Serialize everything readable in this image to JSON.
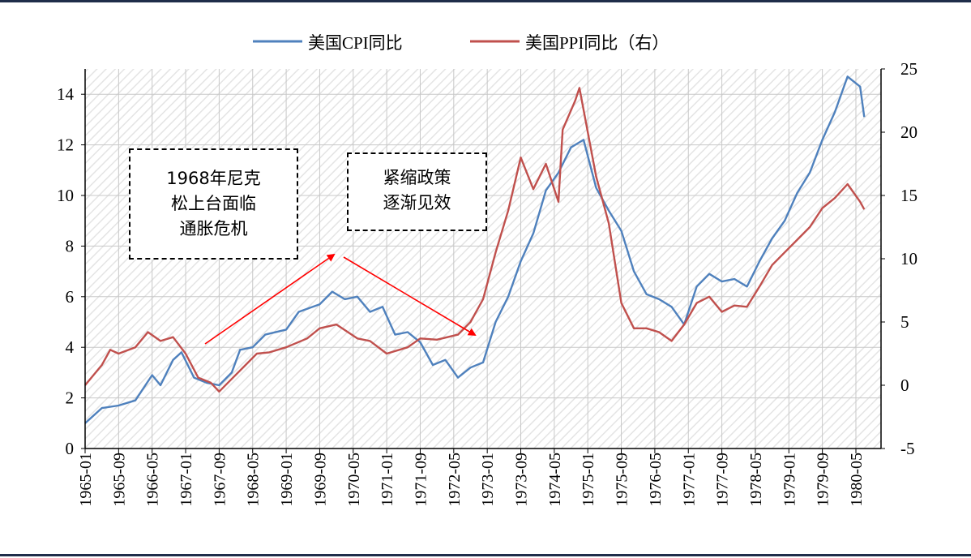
{
  "chart_data": {
    "type": "line",
    "legend": [
      "美国CPI同比",
      "美国PPI同比（右）"
    ],
    "legend_position": "top-center",
    "grid": true,
    "x_ticks": [
      "1965-01",
      "1965-09",
      "1966-05",
      "1967-01",
      "1967-09",
      "1968-05",
      "1969-01",
      "1969-09",
      "1970-05",
      "1971-01",
      "1971-09",
      "1972-05",
      "1973-01",
      "1973-09",
      "1974-05",
      "1975-01",
      "1975-09",
      "1976-05",
      "1977-01",
      "1977-09",
      "1978-05",
      "1979-01",
      "1979-09",
      "1980-05"
    ],
    "y_left_ticks": [
      "0",
      "2",
      "4",
      "6",
      "8",
      "10",
      "12",
      "14"
    ],
    "y_left_range": [
      0,
      15
    ],
    "y_right_ticks": [
      "-5",
      "0",
      "5",
      "10",
      "15",
      "20",
      "25"
    ],
    "y_right_range": [
      -5,
      25
    ],
    "series": [
      {
        "name": "美国CPI同比",
        "axis": "left",
        "color": "#4f81bd",
        "points": [
          [
            "1965-01",
            1.0
          ],
          [
            "1965-05",
            1.6
          ],
          [
            "1965-09",
            1.7
          ],
          [
            "1966-01",
            1.9
          ],
          [
            "1966-05",
            2.9
          ],
          [
            "1966-07",
            2.5
          ],
          [
            "1966-10",
            3.5
          ],
          [
            "1966-12",
            3.8
          ],
          [
            "1967-03",
            2.8
          ],
          [
            "1967-06",
            2.6
          ],
          [
            "1967-09",
            2.5
          ],
          [
            "1967-12",
            3.0
          ],
          [
            "1968-02",
            3.9
          ],
          [
            "1968-05",
            4.0
          ],
          [
            "1968-08",
            4.5
          ],
          [
            "1969-01",
            4.7
          ],
          [
            "1969-04",
            5.4
          ],
          [
            "1969-09",
            5.7
          ],
          [
            "1969-12",
            6.2
          ],
          [
            "1970-03",
            5.9
          ],
          [
            "1970-06",
            6.0
          ],
          [
            "1970-09",
            5.4
          ],
          [
            "1970-12",
            5.6
          ],
          [
            "1971-03",
            4.5
          ],
          [
            "1971-06",
            4.6
          ],
          [
            "1971-09",
            4.2
          ],
          [
            "1971-12",
            3.3
          ],
          [
            "1972-03",
            3.5
          ],
          [
            "1972-06",
            2.8
          ],
          [
            "1972-09",
            3.2
          ],
          [
            "1972-12",
            3.4
          ],
          [
            "1973-03",
            5.0
          ],
          [
            "1973-06",
            6.0
          ],
          [
            "1973-09",
            7.4
          ],
          [
            "1973-12",
            8.5
          ],
          [
            "1974-03",
            10.2
          ],
          [
            "1974-06",
            10.9
          ],
          [
            "1974-09",
            11.9
          ],
          [
            "1974-12",
            12.2
          ],
          [
            "1975-03",
            10.3
          ],
          [
            "1975-06",
            9.4
          ],
          [
            "1975-09",
            8.6
          ],
          [
            "1975-12",
            7.0
          ],
          [
            "1976-03",
            6.1
          ],
          [
            "1976-06",
            5.9
          ],
          [
            "1976-09",
            5.6
          ],
          [
            "1976-12",
            4.9
          ],
          [
            "1977-03",
            6.4
          ],
          [
            "1977-06",
            6.9
          ],
          [
            "1977-09",
            6.6
          ],
          [
            "1977-12",
            6.7
          ],
          [
            "1978-03",
            6.4
          ],
          [
            "1978-06",
            7.4
          ],
          [
            "1978-09",
            8.3
          ],
          [
            "1978-12",
            9.0
          ],
          [
            "1979-03",
            10.1
          ],
          [
            "1979-06",
            10.9
          ],
          [
            "1979-09",
            12.2
          ],
          [
            "1979-12",
            13.3
          ],
          [
            "1980-03",
            14.7
          ],
          [
            "1980-06",
            14.3
          ],
          [
            "1980-07",
            13.1
          ]
        ]
      },
      {
        "name": "美国PPI同比（右）",
        "axis": "right",
        "color": "#c0504d",
        "points": [
          [
            "1965-01",
            0.0
          ],
          [
            "1965-05",
            1.6
          ],
          [
            "1965-07",
            2.8
          ],
          [
            "1965-09",
            2.5
          ],
          [
            "1966-01",
            3.0
          ],
          [
            "1966-04",
            4.2
          ],
          [
            "1966-07",
            3.5
          ],
          [
            "1966-10",
            3.8
          ],
          [
            "1967-01",
            2.5
          ],
          [
            "1967-04",
            0.6
          ],
          [
            "1967-07",
            0.2
          ],
          [
            "1967-09",
            -0.5
          ],
          [
            "1967-12",
            0.5
          ],
          [
            "1968-03",
            1.5
          ],
          [
            "1968-06",
            2.5
          ],
          [
            "1968-09",
            2.6
          ],
          [
            "1969-01",
            3.0
          ],
          [
            "1969-06",
            3.7
          ],
          [
            "1969-09",
            4.5
          ],
          [
            "1970-01",
            4.8
          ],
          [
            "1970-06",
            3.7
          ],
          [
            "1970-09",
            3.5
          ],
          [
            "1971-01",
            2.5
          ],
          [
            "1971-06",
            3.0
          ],
          [
            "1971-09",
            3.7
          ],
          [
            "1972-01",
            3.6
          ],
          [
            "1972-06",
            4.0
          ],
          [
            "1972-09",
            5.0
          ],
          [
            "1972-12",
            6.8
          ],
          [
            "1973-03",
            10.5
          ],
          [
            "1973-06",
            13.8
          ],
          [
            "1973-09",
            18.0
          ],
          [
            "1973-12",
            15.5
          ],
          [
            "1974-03",
            17.5
          ],
          [
            "1974-06",
            14.5
          ],
          [
            "1974-07",
            20.2
          ],
          [
            "1974-10",
            22.5
          ],
          [
            "1974-11",
            23.5
          ],
          [
            "1975-03",
            16.5
          ],
          [
            "1975-06",
            12.8
          ],
          [
            "1975-09",
            6.5
          ],
          [
            "1975-12",
            4.5
          ],
          [
            "1976-03",
            4.5
          ],
          [
            "1976-06",
            4.2
          ],
          [
            "1976-09",
            3.5
          ],
          [
            "1976-12",
            4.8
          ],
          [
            "1977-03",
            6.5
          ],
          [
            "1977-06",
            7.0
          ],
          [
            "1977-09",
            5.8
          ],
          [
            "1977-12",
            6.3
          ],
          [
            "1978-03",
            6.2
          ],
          [
            "1978-06",
            7.8
          ],
          [
            "1978-09",
            9.5
          ],
          [
            "1978-12",
            10.5
          ],
          [
            "1979-03",
            11.5
          ],
          [
            "1979-06",
            12.5
          ],
          [
            "1979-09",
            14.0
          ],
          [
            "1979-12",
            14.8
          ],
          [
            "1980-03",
            15.9
          ],
          [
            "1980-06",
            14.5
          ],
          [
            "1980-07",
            13.9
          ]
        ]
      }
    ],
    "annotations": [
      {
        "lines": [
          "1968年尼克",
          "松上台面临",
          "通胀危机"
        ]
      },
      {
        "lines": [
          "紧缩政策",
          "逐渐见效"
        ]
      }
    ]
  }
}
